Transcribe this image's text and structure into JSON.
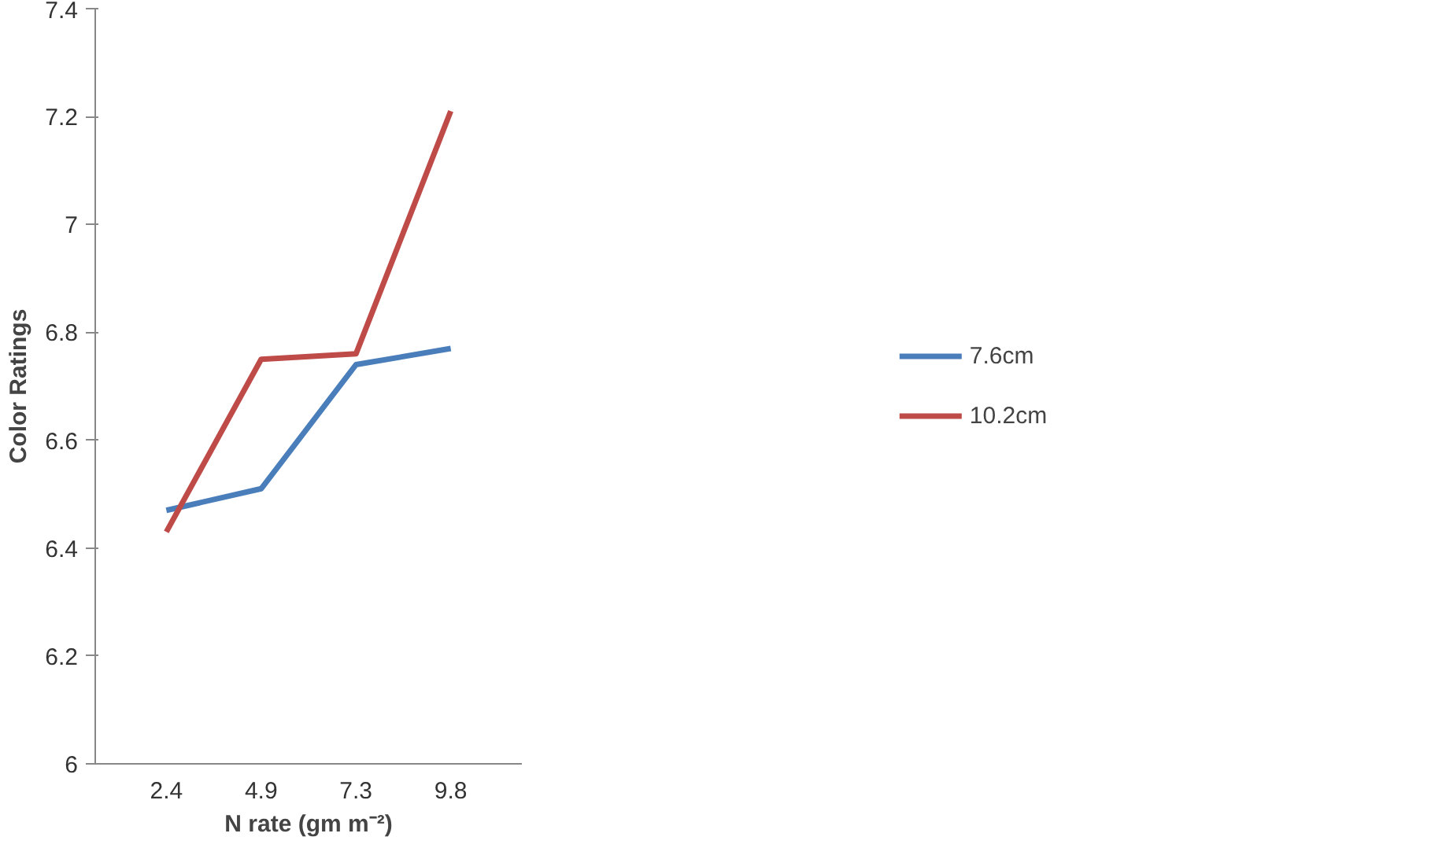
{
  "chart_data": {
    "type": "line",
    "xlabel": "N rate (gm m⁻²)",
    "ylabel": "Color Ratings",
    "categories": [
      "2.4",
      "4.9",
      "7.3",
      "9.8"
    ],
    "series": [
      {
        "name": "7.6cm",
        "color": "#4a7ebb",
        "values": [
          6.47,
          6.51,
          6.74,
          6.77
        ]
      },
      {
        "name": "10.2cm",
        "color": "#be4b48",
        "values": [
          6.43,
          6.75,
          6.76,
          7.21
        ]
      }
    ],
    "ylim": [
      6,
      7.4
    ],
    "yticks": [
      6,
      6.2,
      6.4,
      6.6,
      6.8,
      7,
      7.2,
      7.4
    ],
    "grid": false,
    "legend": "right",
    "marker": "none",
    "line_style": "solid"
  }
}
